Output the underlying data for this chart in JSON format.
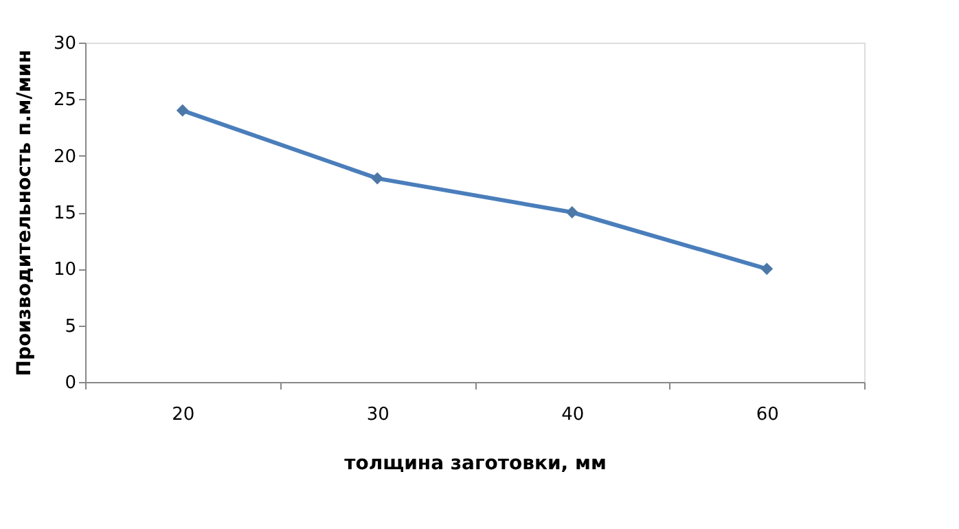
{
  "chart_data": {
    "type": "line",
    "xlabel": "толщина заготовки, мм",
    "ylabel": "Производительность п.м/мин",
    "categories": [
      "20",
      "30",
      "40",
      "60"
    ],
    "series": [
      {
        "color": "#4a7ebb",
        "values": [
          24,
          18,
          15,
          10
        ]
      }
    ],
    "ylim": [
      0,
      30
    ],
    "yticks": [
      0,
      5,
      10,
      15,
      20,
      25,
      30
    ],
    "marker": "diamond",
    "line_style": "solid",
    "grid": false
  }
}
